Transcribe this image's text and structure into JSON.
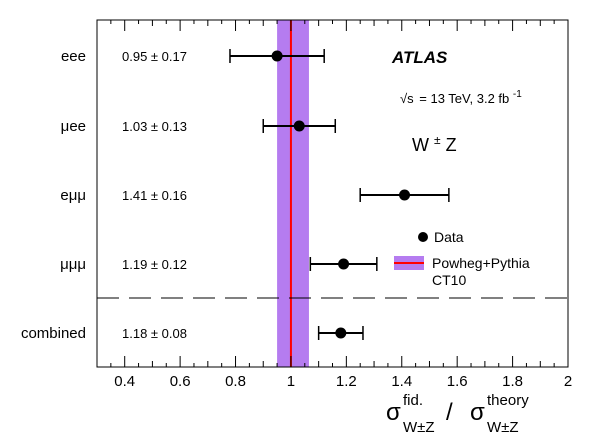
{
  "chart_data": {
    "type": "scatter",
    "orientation": "horizontal",
    "categories": [
      "eee",
      "μee",
      "eμμ",
      "μμμ",
      "combined"
    ],
    "values": [
      0.95,
      1.03,
      1.41,
      1.19,
      1.18
    ],
    "errors": [
      0.17,
      0.13,
      0.16,
      0.12,
      0.08
    ],
    "value_labels": [
      "0.95 ± 0.17",
      "1.03 ± 0.13",
      "1.41 ± 0.16",
      "1.19 ± 0.12",
      "1.18 ± 0.08"
    ],
    "xlim": [
      0.3,
      2.0
    ],
    "xticks": [
      0.4,
      0.6,
      0.8,
      1.0,
      1.2,
      1.4,
      1.6,
      1.8,
      2.0
    ],
    "xtick_labels": [
      "0.4",
      "0.6",
      "0.8",
      "1",
      "1.2",
      "1.4",
      "1.6",
      "1.8",
      "2"
    ],
    "xlabel": {
      "numerator": "σ",
      "numerator_sup": "fid.",
      "numerator_sub": "W±Z",
      "divider": "/",
      "denominator": "σ",
      "denominator_sup": "theory",
      "denominator_sub": "W±Z"
    },
    "theory": {
      "central": 1.0,
      "band": [
        0.95,
        1.065
      ],
      "line_color": "#ff0000",
      "band_color": "#b57cf0"
    },
    "separator_after_category": "μμμ",
    "grid": false,
    "annotations": {
      "experiment": "ATLAS",
      "energy_sqrt": "√s",
      "energy_rest": "= 13 TeV, 3.2 fb",
      "energy_sup": "-1",
      "process": "W",
      "process_sup": "±",
      "process_rest": "Z"
    },
    "legend": {
      "placement": "right",
      "entries": [
        {
          "label": "Data",
          "marker": "point"
        },
        {
          "label": "Powheg+Pythia",
          "marker": "line-band"
        },
        {
          "label": "CT10",
          "marker": "none"
        }
      ]
    }
  }
}
